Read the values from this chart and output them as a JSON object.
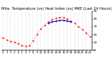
{
  "title": "Milw  Temperature (vs) Heat Index (vs) MKE (Last 24 Hours)",
  "background_color": "#ffffff",
  "plot_bg_color": "#ffffff",
  "grid_color": "#888888",
  "temp_color": "#ff0000",
  "heat_color": "#0000cc",
  "x_hours": [
    0,
    1,
    2,
    3,
    4,
    5,
    6,
    7,
    8,
    9,
    10,
    11,
    12,
    13,
    14,
    15,
    16,
    17,
    18,
    19,
    20,
    21,
    22,
    23
  ],
  "temp_values": [
    56,
    53,
    51,
    50,
    48,
    46,
    45,
    46,
    52,
    60,
    67,
    72,
    76,
    79,
    81,
    82,
    82,
    80,
    77,
    74,
    70,
    66,
    62,
    57
  ],
  "heat_values": [
    null,
    null,
    null,
    null,
    null,
    null,
    null,
    null,
    null,
    null,
    null,
    null,
    74,
    76,
    77,
    78,
    78,
    77,
    76,
    null,
    null,
    null,
    null,
    null
  ],
  "ylim": [
    40,
    90
  ],
  "ytick_vals": [
    40,
    50,
    60,
    70,
    80,
    90
  ],
  "ytick_labels": [
    "40",
    "50",
    "60",
    "70",
    "80",
    "90"
  ],
  "title_fontsize": 3.8,
  "tick_fontsize": 3.0,
  "marker_size": 1.2,
  "line_width": 0.5,
  "figwidth": 1.6,
  "figheight": 0.87,
  "dpi": 100
}
